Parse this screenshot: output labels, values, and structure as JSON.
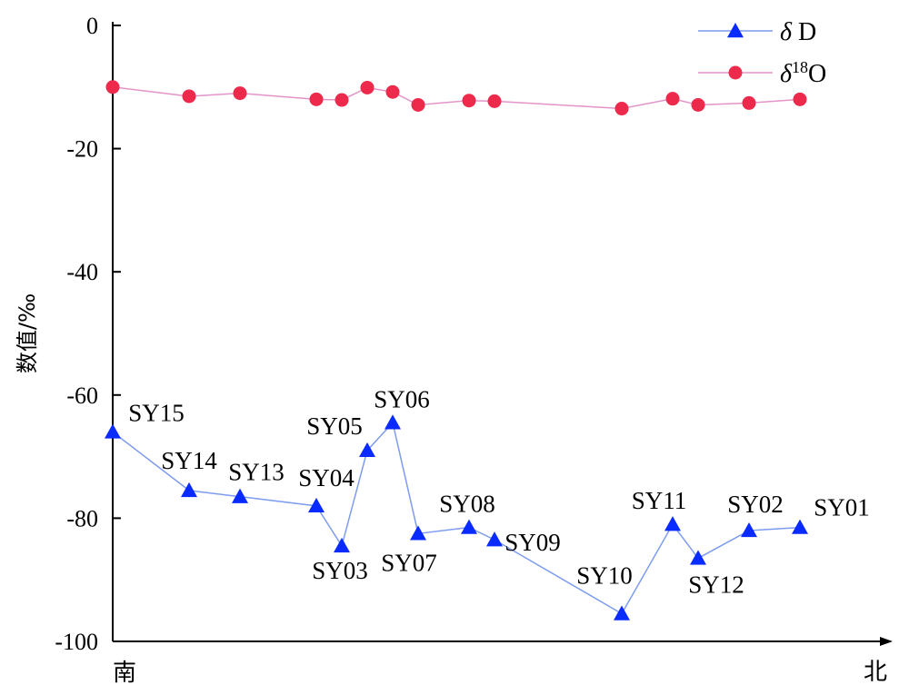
{
  "chart_data": {
    "type": "line",
    "x_start_label": "南",
    "x_end_label": "北",
    "ylabel": "数值/‰",
    "ylim": [
      -100,
      0
    ],
    "yticks": [
      0,
      -20,
      -40,
      -60,
      -80,
      -100
    ],
    "grid": false,
    "legend_position": "top-right",
    "samples": [
      "SY15",
      "SY14",
      "SY13",
      "SY04",
      "SY03",
      "SY05",
      "SY06",
      "SY07",
      "SY08",
      "SY09",
      "SY10",
      "SY11",
      "SY12",
      "SY02",
      "SY01"
    ],
    "x": [
      0,
      3,
      5,
      8,
      9,
      10,
      11,
      12,
      14,
      15,
      20,
      22,
      23,
      25,
      27
    ],
    "series": [
      {
        "name": "δD",
        "marker": "triangle",
        "color": "#0a2bff",
        "line_color": "#7d9cf0",
        "values": [
          -66,
          -75.5,
          -76.5,
          -78,
          -84.5,
          -69,
          -64.5,
          -82.5,
          -81.5,
          -83.5,
          -95.5,
          -81,
          -86.5,
          -82,
          -81.5
        ]
      },
      {
        "name": "δ18O",
        "marker": "circle",
        "color": "#ee2a4c",
        "line_color": "#e394c8",
        "values": [
          -10,
          -11.5,
          -11,
          -12,
          -12.1,
          -10.1,
          -10.8,
          -12.9,
          -12.2,
          -12.3,
          -13.5,
          -11.9,
          -12.9,
          -12.6,
          -12
        ]
      }
    ],
    "legend": [
      {
        "prefix": "δ",
        "sup": "",
        "suffix": " D"
      },
      {
        "prefix": "δ",
        "sup": "18",
        "suffix": "O"
      }
    ]
  }
}
